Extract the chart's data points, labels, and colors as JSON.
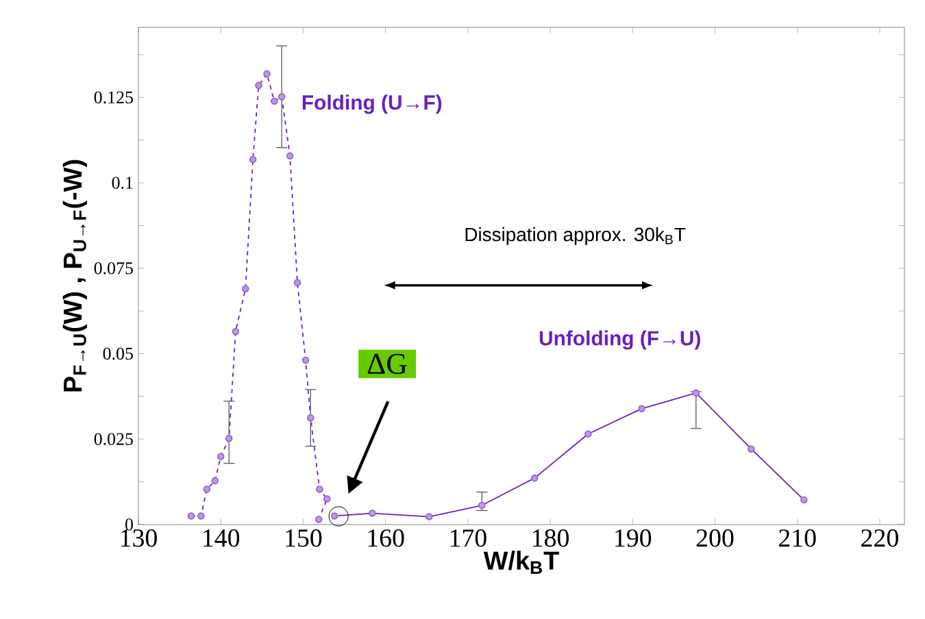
{
  "chart_data": {
    "type": "line",
    "xlabel": "W/k$_{B}$T",
    "ylabel": "P$_{F→U}$(W) , P$_{U→F}$(-W)",
    "xlim": [
      130,
      223
    ],
    "ylim": [
      0,
      0.1455
    ],
    "xticks": [
      130,
      140,
      150,
      160,
      170,
      180,
      190,
      200,
      210,
      220
    ],
    "yticks": [
      0,
      {
        "value": 0.0125,
        "label": null
      },
      0.025,
      {
        "value": 0.0375,
        "label": null
      },
      0.05,
      {
        "value": 0.0625,
        "label": null
      },
      0.075,
      {
        "value": 0.0875,
        "label": null
      },
      0.1,
      {
        "value": 0.1125,
        "label": null
      },
      0.125,
      {
        "value": 0.1375,
        "label": null
      }
    ],
    "grid": false,
    "legend": false,
    "marker": "circle",
    "annotations": [
      "Dissipation  approx. 30k$_{B}$T",
      "ΔG"
    ],
    "series": [
      {
        "name": "Folding (U→F)",
        "color": "#6a1fc0",
        "line_style": "dashed",
        "x": [
          136.4,
          137.6,
          138.3,
          139.3,
          140.0,
          141.0,
          141.8,
          143.0,
          143.9,
          144.6,
          145.6,
          146.5,
          147.4,
          148.4,
          149.3,
          150.3,
          150.9,
          152.0,
          152.9,
          151.9
        ],
        "values": [
          0.0025,
          0.0025,
          0.0103,
          0.0128,
          0.0199,
          0.0252,
          0.0565,
          0.069,
          0.1068,
          0.1285,
          0.1319,
          0.1239,
          0.1252,
          0.1079,
          0.0708,
          0.0481,
          0.0312,
          0.0103,
          0.0075,
          0.0015
        ],
        "errors": [
          null,
          null,
          null,
          null,
          null,
          [
            0.0179,
            0.0361
          ],
          null,
          null,
          null,
          null,
          null,
          null,
          [
            0.1103,
            0.1401
          ],
          null,
          null,
          null,
          [
            0.0229,
            0.0395
          ],
          null,
          null,
          null
        ]
      },
      {
        "name": "Unfolding (F→U)",
        "color": "#6a1fc0",
        "line_style": "solid",
        "x": [
          153.8,
          158.4,
          165.3,
          171.7,
          178.1,
          184.6,
          191.1,
          197.7,
          204.4,
          210.8
        ],
        "values": [
          0.0025,
          0.0033,
          0.0023,
          0.0056,
          0.0136,
          0.0265,
          0.0339,
          0.0385,
          0.0221,
          0.0072
        ],
        "errors": [
          null,
          null,
          null,
          [
            0.0041,
            0.0095
          ],
          null,
          null,
          null,
          [
            0.0281,
            0.0389
          ],
          null,
          null
        ]
      }
    ]
  }
}
